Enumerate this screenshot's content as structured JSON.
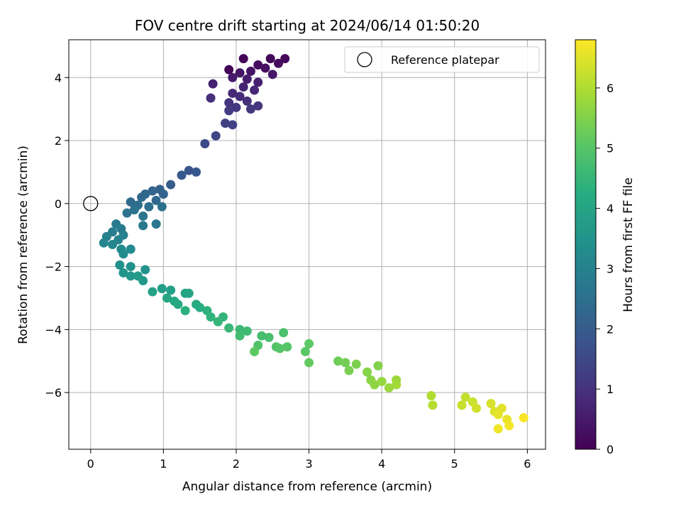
{
  "chart_data": {
    "type": "scatter",
    "title": "FOV centre drift starting at 2024/06/14 01:50:20",
    "xlabel": "Angular distance from reference (arcmin)",
    "ylabel": "Rotation from reference (arcmin)",
    "xlim": [
      -0.3,
      6.25
    ],
    "ylim": [
      -7.8,
      5.2
    ],
    "xticks": [
      0,
      1,
      2,
      3,
      4,
      5,
      6
    ],
    "yticks": [
      -6,
      -4,
      -2,
      0,
      2,
      4
    ],
    "grid": true,
    "legend": {
      "placement": "top-right",
      "entries": [
        "Reference platepar"
      ]
    },
    "reference": {
      "x": 0,
      "y": 0,
      "label": "Reference platepar"
    },
    "colorbar": {
      "label": "Hours from first FF file",
      "min": 0,
      "max": 6.8,
      "ticks": [
        0,
        1,
        2,
        3,
        4,
        5,
        6
      ],
      "colormap": "viridis"
    },
    "points": [
      [
        1.9,
        4.25,
        0.05
      ],
      [
        2.1,
        4.6,
        0.1
      ],
      [
        2.47,
        4.6,
        0.12
      ],
      [
        2.67,
        4.6,
        0.15
      ],
      [
        2.58,
        4.45,
        0.2
      ],
      [
        2.3,
        4.4,
        0.25
      ],
      [
        2.4,
        4.3,
        0.3
      ],
      [
        2.2,
        4.2,
        0.35
      ],
      [
        2.05,
        4.15,
        0.4
      ],
      [
        2.5,
        4.1,
        0.45
      ],
      [
        1.95,
        4.0,
        0.5
      ],
      [
        2.15,
        3.95,
        0.55
      ],
      [
        2.3,
        3.85,
        0.6
      ],
      [
        1.68,
        3.8,
        0.65
      ],
      [
        2.1,
        3.7,
        0.7
      ],
      [
        2.25,
        3.6,
        0.75
      ],
      [
        1.95,
        3.5,
        0.8
      ],
      [
        2.05,
        3.4,
        0.85
      ],
      [
        1.65,
        3.35,
        0.9
      ],
      [
        2.15,
        3.25,
        0.95
      ],
      [
        1.9,
        3.2,
        1.0
      ],
      [
        2.3,
        3.1,
        1.05
      ],
      [
        2.0,
        3.05,
        1.1
      ],
      [
        2.2,
        3.0,
        1.15
      ],
      [
        1.9,
        2.95,
        1.2
      ],
      [
        1.85,
        2.55,
        1.3
      ],
      [
        1.95,
        2.5,
        1.35
      ],
      [
        1.72,
        2.15,
        1.45
      ],
      [
        1.57,
        1.9,
        1.55
      ],
      [
        1.35,
        1.05,
        1.8
      ],
      [
        1.45,
        1.0,
        1.85
      ],
      [
        1.25,
        0.9,
        1.9
      ],
      [
        1.1,
        0.6,
        2.0
      ],
      [
        0.95,
        0.45,
        2.1
      ],
      [
        1.0,
        0.3,
        2.15
      ],
      [
        0.85,
        0.4,
        2.2
      ],
      [
        0.75,
        0.3,
        2.25
      ],
      [
        0.7,
        0.2,
        2.3
      ],
      [
        0.9,
        0.1,
        2.35
      ],
      [
        0.55,
        0.05,
        2.4
      ],
      [
        0.65,
        -0.05,
        2.45
      ],
      [
        0.8,
        -0.1,
        2.5
      ],
      [
        0.98,
        -0.1,
        2.52
      ],
      [
        0.6,
        -0.2,
        2.55
      ],
      [
        0.5,
        -0.3,
        2.6
      ],
      [
        0.72,
        -0.4,
        2.65
      ],
      [
        0.9,
        -0.65,
        2.7
      ],
      [
        0.72,
        -0.7,
        2.75
      ],
      [
        0.35,
        -0.65,
        2.8
      ],
      [
        0.42,
        -0.8,
        2.85
      ],
      [
        0.3,
        -0.9,
        2.9
      ],
      [
        0.45,
        -1.0,
        2.95
      ],
      [
        0.22,
        -1.05,
        3.0
      ],
      [
        0.38,
        -1.15,
        3.05
      ],
      [
        0.18,
        -1.25,
        3.1
      ],
      [
        0.3,
        -1.3,
        3.15
      ],
      [
        0.42,
        -1.45,
        3.2
      ],
      [
        0.55,
        -1.45,
        3.25
      ],
      [
        0.45,
        -1.6,
        3.3
      ],
      [
        0.4,
        -1.95,
        3.4
      ],
      [
        0.55,
        -2.0,
        3.45
      ],
      [
        0.75,
        -2.1,
        3.5
      ],
      [
        0.45,
        -2.2,
        3.55
      ],
      [
        0.55,
        -2.3,
        3.6
      ],
      [
        0.65,
        -2.3,
        3.65
      ],
      [
        0.72,
        -2.45,
        3.7
      ],
      [
        0.98,
        -2.7,
        3.8
      ],
      [
        1.1,
        -2.75,
        3.85
      ],
      [
        0.85,
        -2.8,
        3.9
      ],
      [
        1.3,
        -2.85,
        3.95
      ],
      [
        1.35,
        -2.85,
        4.0
      ],
      [
        1.05,
        -3.0,
        4.05
      ],
      [
        1.15,
        -3.1,
        4.1
      ],
      [
        1.2,
        -3.2,
        4.15
      ],
      [
        1.45,
        -3.2,
        4.2
      ],
      [
        1.5,
        -3.3,
        4.25
      ],
      [
        1.3,
        -3.4,
        4.3
      ],
      [
        1.6,
        -3.4,
        4.35
      ],
      [
        1.65,
        -3.6,
        4.4
      ],
      [
        1.82,
        -3.6,
        4.45
      ],
      [
        1.75,
        -3.75,
        4.5
      ],
      [
        1.9,
        -3.95,
        4.55
      ],
      [
        2.05,
        -4.0,
        4.6
      ],
      [
        2.15,
        -4.05,
        4.65
      ],
      [
        2.05,
        -4.2,
        4.7
      ],
      [
        2.35,
        -4.2,
        4.75
      ],
      [
        2.45,
        -4.25,
        4.8
      ],
      [
        2.65,
        -4.1,
        4.85
      ],
      [
        2.3,
        -4.5,
        4.9
      ],
      [
        2.55,
        -4.55,
        4.95
      ],
      [
        2.6,
        -4.6,
        5.0
      ],
      [
        2.7,
        -4.55,
        5.0
      ],
      [
        2.95,
        -4.7,
        5.05
      ],
      [
        3.0,
        -4.45,
        5.1
      ],
      [
        2.25,
        -4.7,
        5.1
      ],
      [
        3.0,
        -5.05,
        5.15
      ],
      [
        3.4,
        -5.0,
        5.3
      ],
      [
        3.5,
        -5.05,
        5.35
      ],
      [
        3.55,
        -5.3,
        5.4
      ],
      [
        3.65,
        -5.1,
        5.45
      ],
      [
        3.95,
        -5.15,
        5.5
      ],
      [
        3.8,
        -5.35,
        5.55
      ],
      [
        3.85,
        -5.6,
        5.6
      ],
      [
        3.9,
        -5.75,
        5.65
      ],
      [
        4.0,
        -5.65,
        5.7
      ],
      [
        4.1,
        -5.85,
        5.75
      ],
      [
        4.2,
        -5.6,
        5.8
      ],
      [
        4.2,
        -5.75,
        5.85
      ],
      [
        4.68,
        -6.1,
        6.0
      ],
      [
        4.7,
        -6.4,
        6.05
      ],
      [
        5.15,
        -6.15,
        6.2
      ],
      [
        5.1,
        -6.4,
        6.25
      ],
      [
        5.25,
        -6.3,
        6.3
      ],
      [
        5.3,
        -6.5,
        6.35
      ],
      [
        5.5,
        -6.35,
        6.4
      ],
      [
        5.55,
        -6.6,
        6.45
      ],
      [
        5.65,
        -6.5,
        6.5
      ],
      [
        5.6,
        -6.7,
        6.55
      ],
      [
        5.72,
        -6.85,
        6.6
      ],
      [
        5.6,
        -7.15,
        6.65
      ],
      [
        5.75,
        -7.05,
        6.7
      ],
      [
        5.95,
        -6.8,
        6.75
      ]
    ]
  }
}
